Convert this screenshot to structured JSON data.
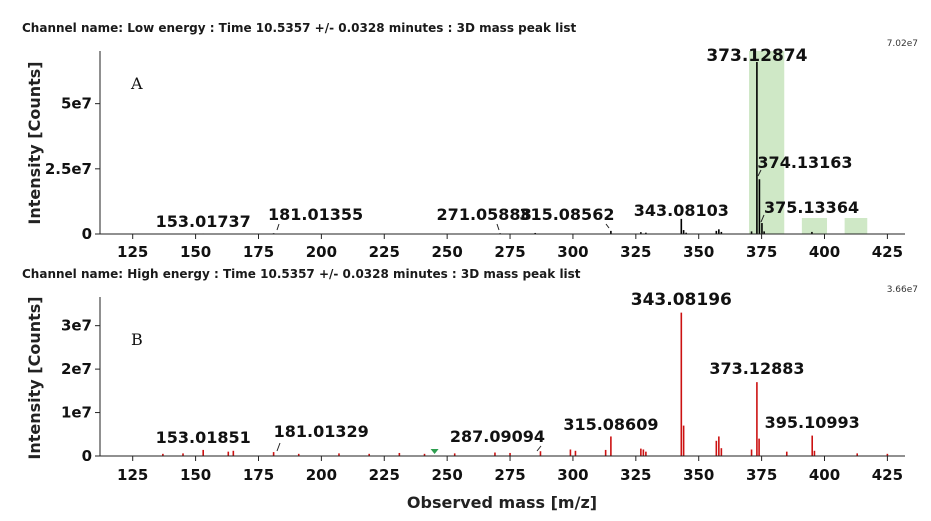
{
  "chart_data": [
    {
      "type": "bar",
      "title": "Channel name: Low energy : Time 10.5357 +/- 0.0328 minutes : 3D mass peak list",
      "panel_label": "A",
      "max_value_label": "7.02e7",
      "xlabel": "",
      "ylabel": "Intensity [Counts]",
      "xlim": [
        112,
        432
      ],
      "ylim": [
        0,
        70200000.0
      ],
      "xticks": [
        125,
        150,
        175,
        200,
        225,
        250,
        275,
        300,
        325,
        350,
        375,
        400,
        425
      ],
      "yticks": [
        {
          "value": 0,
          "label": "0"
        },
        {
          "value": 25000000.0,
          "label": "2.5e7"
        },
        {
          "value": 50000000.0,
          "label": "5e7"
        }
      ],
      "peak_color": "#000000",
      "highlight_color": "#cfe8c6",
      "highlight_regions": [
        [
          370,
          384
        ],
        [
          391,
          401
        ],
        [
          408,
          417
        ]
      ],
      "peaks": [
        {
          "x": 153.01737,
          "y": 200000
        },
        {
          "x": 181.01355,
          "y": 300000
        },
        {
          "x": 271.05888,
          "y": 300000
        },
        {
          "x": 285.0,
          "y": 400000
        },
        {
          "x": 315.08562,
          "y": 1200000
        },
        {
          "x": 327.0,
          "y": 700000
        },
        {
          "x": 329.0,
          "y": 500000
        },
        {
          "x": 343.08103,
          "y": 5800000
        },
        {
          "x": 344.0,
          "y": 1500000
        },
        {
          "x": 345.0,
          "y": 500000
        },
        {
          "x": 357.0,
          "y": 1200000
        },
        {
          "x": 358.0,
          "y": 1800000
        },
        {
          "x": 359.0,
          "y": 800000
        },
        {
          "x": 371.0,
          "y": 1000000
        },
        {
          "x": 373.12874,
          "y": 66000000
        },
        {
          "x": 374.13163,
          "y": 21000000
        },
        {
          "x": 375.13364,
          "y": 4200000
        },
        {
          "x": 376.0,
          "y": 1000000
        },
        {
          "x": 395.0,
          "y": 800000
        }
      ],
      "annotations": [
        {
          "x": 153.01737,
          "label": "153.01737"
        },
        {
          "x": 181.01355,
          "label": "181.01355"
        },
        {
          "x": 271.05888,
          "label": "271.05888"
        },
        {
          "x": 315.08562,
          "label": "315.08562"
        },
        {
          "x": 343.08103,
          "label": "343.08103"
        },
        {
          "x": 373.12874,
          "label": "373.12874"
        },
        {
          "x": 374.13163,
          "label": "374.13163"
        },
        {
          "x": 375.13364,
          "label": "375.13364"
        }
      ]
    },
    {
      "type": "bar",
      "title": "Channel name: High energy : Time 10.5357 +/- 0.0328 minutes : 3D mass peak list",
      "panel_label": "B",
      "max_value_label": "3.66e7",
      "xlabel": "Observed mass [m/z]",
      "ylabel": "Intensity [Counts]",
      "xlim": [
        112,
        432
      ],
      "ylim": [
        0,
        36600000.0
      ],
      "xticks": [
        125,
        150,
        175,
        200,
        225,
        250,
        275,
        300,
        325,
        350,
        375,
        400,
        425
      ],
      "yticks": [
        {
          "value": 0,
          "label": "0"
        },
        {
          "value": 10000000.0,
          "label": "1e7"
        },
        {
          "value": 20000000.0,
          "label": "2e7"
        },
        {
          "value": 30000000.0,
          "label": "3e7"
        }
      ],
      "peak_color": "#cc1111",
      "marker_color": "#2e9e4f",
      "marker_x": 245,
      "peaks": [
        {
          "x": 137.0,
          "y": 500000
        },
        {
          "x": 145.0,
          "y": 600000
        },
        {
          "x": 153.01851,
          "y": 1400000
        },
        {
          "x": 163.0,
          "y": 1000000
        },
        {
          "x": 165.0,
          "y": 1200000
        },
        {
          "x": 181.01329,
          "y": 900000
        },
        {
          "x": 191.0,
          "y": 500000
        },
        {
          "x": 207.0,
          "y": 600000
        },
        {
          "x": 219.0,
          "y": 500000
        },
        {
          "x": 231.0,
          "y": 700000
        },
        {
          "x": 241.0,
          "y": 500000
        },
        {
          "x": 253.0,
          "y": 600000
        },
        {
          "x": 269.0,
          "y": 800000
        },
        {
          "x": 275.0,
          "y": 700000
        },
        {
          "x": 287.09094,
          "y": 1100000
        },
        {
          "x": 299.0,
          "y": 1500000
        },
        {
          "x": 301.0,
          "y": 1200000
        },
        {
          "x": 313.0,
          "y": 1400000
        },
        {
          "x": 315.08609,
          "y": 4500000
        },
        {
          "x": 327.0,
          "y": 1700000
        },
        {
          "x": 328.0,
          "y": 1500000
        },
        {
          "x": 329.0,
          "y": 1000000
        },
        {
          "x": 343.08196,
          "y": 33000000
        },
        {
          "x": 344.0,
          "y": 7000000
        },
        {
          "x": 357.0,
          "y": 3500000
        },
        {
          "x": 358.0,
          "y": 4500000
        },
        {
          "x": 359.0,
          "y": 1800000
        },
        {
          "x": 371.0,
          "y": 1500000
        },
        {
          "x": 373.12883,
          "y": 17000000
        },
        {
          "x": 374.0,
          "y": 4000000
        },
        {
          "x": 385.0,
          "y": 1000000
        },
        {
          "x": 395.10993,
          "y": 4700000
        },
        {
          "x": 396.0,
          "y": 1200000
        },
        {
          "x": 413.0,
          "y": 600000
        },
        {
          "x": 425.0,
          "y": 500000
        }
      ],
      "annotations": [
        {
          "x": 153.01851,
          "label": "153.01851"
        },
        {
          "x": 181.01329,
          "label": "181.01329"
        },
        {
          "x": 287.09094,
          "label": "287.09094"
        },
        {
          "x": 315.08609,
          "label": "315.08609"
        },
        {
          "x": 343.08196,
          "label": "343.08196"
        },
        {
          "x": 373.12883,
          "label": "373.12883"
        },
        {
          "x": 395.10993,
          "label": "395.10993"
        }
      ]
    }
  ]
}
